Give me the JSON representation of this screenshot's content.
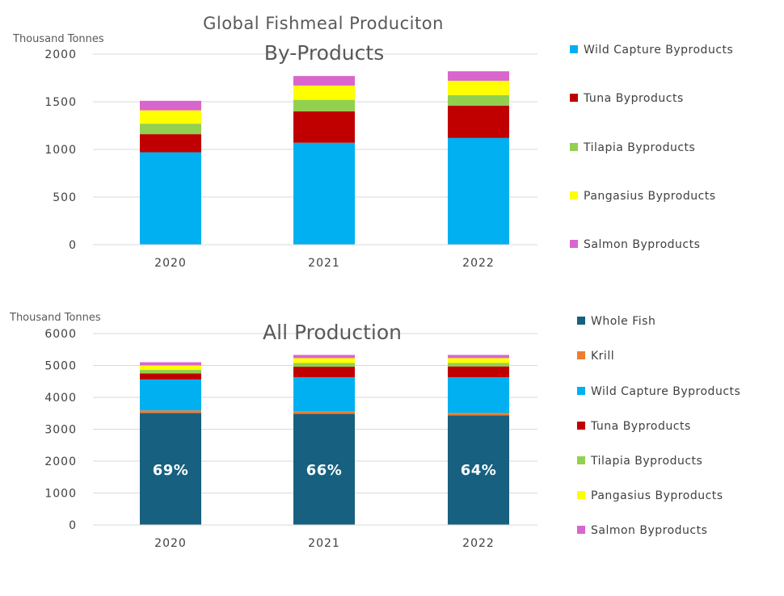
{
  "page": {
    "title": "Global Fishmeal Produciton"
  },
  "chart_data": [
    {
      "type": "bar",
      "stacked": true,
      "subtitle": "By-Products",
      "ylabel": "Thousand Tonnes",
      "categories": [
        "2020",
        "2021",
        "2022"
      ],
      "ylim": [
        0,
        2000
      ],
      "yticks": [
        0,
        500,
        1000,
        1500,
        2000
      ],
      "grid": true,
      "legend_position": "right",
      "series": [
        {
          "name": "Wild Capture Byproducts",
          "color": "#00B0F0",
          "values": [
            970,
            1070,
            1120
          ]
        },
        {
          "name": "Tuna Byproducts",
          "color": "#C00000",
          "values": [
            190,
            330,
            340
          ]
        },
        {
          "name": "Tilapia Byproducts",
          "color": "#92D050",
          "values": [
            110,
            120,
            110
          ]
        },
        {
          "name": "Pangasius Byproducts",
          "color": "#FFFF00",
          "values": [
            140,
            150,
            150
          ]
        },
        {
          "name": "Salmon Byproducts",
          "color": "#D966CC",
          "values": [
            100,
            100,
            100
          ]
        }
      ]
    },
    {
      "type": "bar",
      "stacked": true,
      "subtitle": "All Production",
      "ylabel": "Thousand Tonnes",
      "categories": [
        "2020",
        "2021",
        "2022"
      ],
      "ylim": [
        0,
        6000
      ],
      "yticks": [
        0,
        1000,
        2000,
        3000,
        4000,
        5000,
        6000
      ],
      "grid": true,
      "legend_position": "right",
      "bar_labels": [
        "69%",
        "66%",
        "64%"
      ],
      "series": [
        {
          "name": "Whole Fish",
          "color": "#17607F",
          "values": [
            3510,
            3480,
            3430
          ]
        },
        {
          "name": "Krill",
          "color": "#ED7D31",
          "values": [
            80,
            80,
            80
          ]
        },
        {
          "name": "Wild Capture Byproducts",
          "color": "#00B0F0",
          "values": [
            970,
            1070,
            1120
          ]
        },
        {
          "name": "Tuna Byproducts",
          "color": "#C00000",
          "values": [
            190,
            330,
            340
          ]
        },
        {
          "name": "Tilapia Byproducts",
          "color": "#92D050",
          "values": [
            110,
            120,
            110
          ]
        },
        {
          "name": "Pangasius Byproducts",
          "color": "#FFFF00",
          "values": [
            140,
            150,
            150
          ]
        },
        {
          "name": "Salmon Byproducts",
          "color": "#D966CC",
          "values": [
            100,
            100,
            100
          ]
        }
      ]
    }
  ]
}
